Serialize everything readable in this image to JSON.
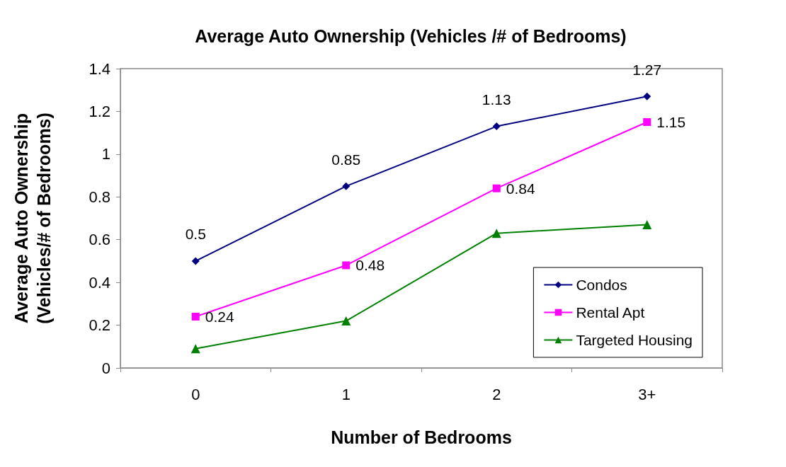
{
  "chart_data": {
    "type": "line",
    "title": "Average Auto Ownership (Vehicles /# of Bedrooms)",
    "xlabel": "Number of Bedrooms",
    "ylabel": "Average Auto Ownership\n(Vehicles/# of Bedrooms)",
    "categories": [
      "0",
      "1",
      "2",
      "3+"
    ],
    "series": [
      {
        "name": "Condos",
        "color": "#000080",
        "marker": "diamond",
        "values": [
          0.5,
          0.85,
          1.13,
          1.27
        ],
        "value_labels": [
          "0.5",
          "0.85",
          "1.13",
          "1.27"
        ]
      },
      {
        "name": "Rental Apt",
        "color": "#ff00ff",
        "marker": "square",
        "values": [
          0.24,
          0.48,
          0.84,
          1.15
        ],
        "value_labels": [
          "0.24",
          "0.48",
          "0.84",
          "1.15"
        ]
      },
      {
        "name": "Targeted Housing",
        "color": "#008000",
        "marker": "triangle",
        "values": [
          0.09,
          0.22,
          0.63,
          0.67
        ]
      }
    ],
    "ylim": [
      0,
      1.4
    ],
    "yticks": [
      0,
      0.2,
      0.4,
      0.6,
      0.8,
      1,
      1.2,
      1.4
    ],
    "grid": false,
    "legend": "bottom right",
    "line_style": "solid"
  }
}
